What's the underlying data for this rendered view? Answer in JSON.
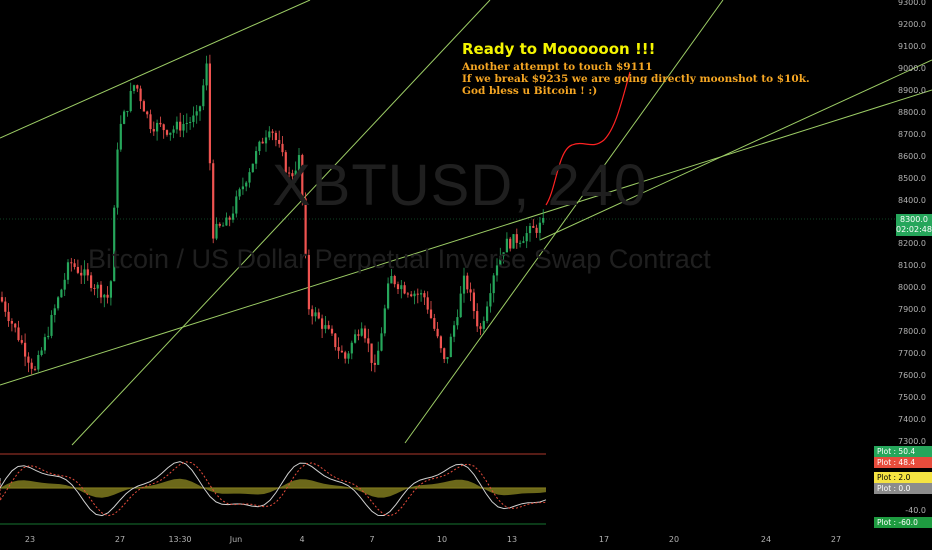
{
  "chart_data": {
    "type": "candlestick",
    "watermark": {
      "symbol": "XBTUSD, 240",
      "name": "Bitcoin / US Dollar Perpetual Inverse Swap Contract"
    },
    "annotation": {
      "title": "Ready to Moooooon !!!",
      "lines": [
        "Another attempt to touch $9111",
        "If we break $9235 we are going directly moonshot to $10k.",
        "God bless u Bitcoin ! :)"
      ]
    },
    "y_axis": {
      "ticks": [
        "9300.0",
        "9200.0",
        "9100.0",
        "9000.0",
        "8900.0",
        "8800.0",
        "8700.0",
        "8600.0",
        "8500.0",
        "8400.0",
        "8300.0",
        "8200.0",
        "8100.0",
        "8000.0",
        "7900.0",
        "7800.0",
        "7700.0",
        "7600.0",
        "7500.0",
        "7400.0",
        "7300.0"
      ],
      "range": [
        7300,
        9300
      ]
    },
    "x_axis": {
      "ticks": [
        "23",
        "27",
        "13:30",
        "Jun",
        "4",
        "7",
        "10",
        "13",
        "17",
        "20",
        "24",
        "27"
      ]
    },
    "current_price": {
      "value": "8300.0",
      "countdown": "02:02:48",
      "color": "#26a65b"
    },
    "oscillator": {
      "axis_ticks": [
        "-40.0"
      ],
      "plots": [
        {
          "label": "Plot",
          "value": "50.4",
          "color": "#26a65b"
        },
        {
          "label": "Plot",
          "value": "48.4",
          "color": "#e74c3c"
        },
        {
          "label": "Plot",
          "value": "2.0",
          "color": "#f5e342"
        },
        {
          "label": "Plot",
          "value": "0.0",
          "color": "#8c8c8c"
        },
        {
          "label": "Plot",
          "value": "-60.0",
          "color": "#1e9b40"
        }
      ]
    },
    "colors": {
      "up": "#26a65b",
      "down": "#ef5350",
      "trendline": "#9ccc65",
      "projection": "#ff2222",
      "histogram": "#7f7a1e"
    }
  }
}
